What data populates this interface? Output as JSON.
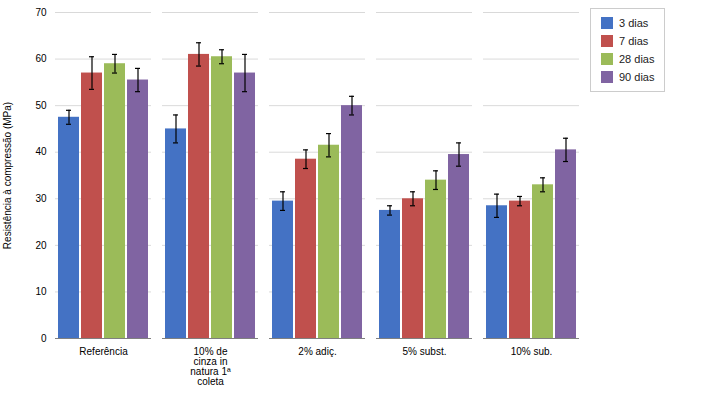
{
  "chart_data": {
    "type": "bar",
    "categories": [
      "Referência",
      "10% de\ncinza in\nnatura 1ª\ncoleta",
      "2% adiç.",
      "5% subst.",
      "10% sub."
    ],
    "series": [
      {
        "name": "3 dias",
        "color": "#4472C4",
        "values": [
          47.5,
          45.0,
          29.5,
          27.5,
          28.5
        ],
        "errors": [
          1.5,
          3.0,
          2.0,
          1.0,
          2.5
        ]
      },
      {
        "name": "7 dias",
        "color": "#C0504D",
        "values": [
          57.0,
          61.0,
          38.5,
          30.0,
          29.5
        ],
        "errors": [
          3.5,
          2.5,
          2.0,
          1.5,
          1.0
        ]
      },
      {
        "name": "28 dias",
        "color": "#9BBB59",
        "values": [
          59.0,
          60.5,
          41.5,
          34.0,
          33.0
        ],
        "errors": [
          2.0,
          1.5,
          2.5,
          2.0,
          1.5
        ]
      },
      {
        "name": "90 dias",
        "color": "#8064A2",
        "values": [
          55.5,
          57.0,
          50.0,
          39.5,
          40.5
        ],
        "errors": [
          2.5,
          4.0,
          2.0,
          2.5,
          2.5
        ]
      }
    ],
    "ylabel": "Resistência à compressão (MPa)",
    "ylim": [
      0,
      70
    ],
    "yticks": [
      0,
      10,
      20,
      30,
      40,
      50,
      60,
      70
    ],
    "grid": true,
    "legend": "right"
  }
}
